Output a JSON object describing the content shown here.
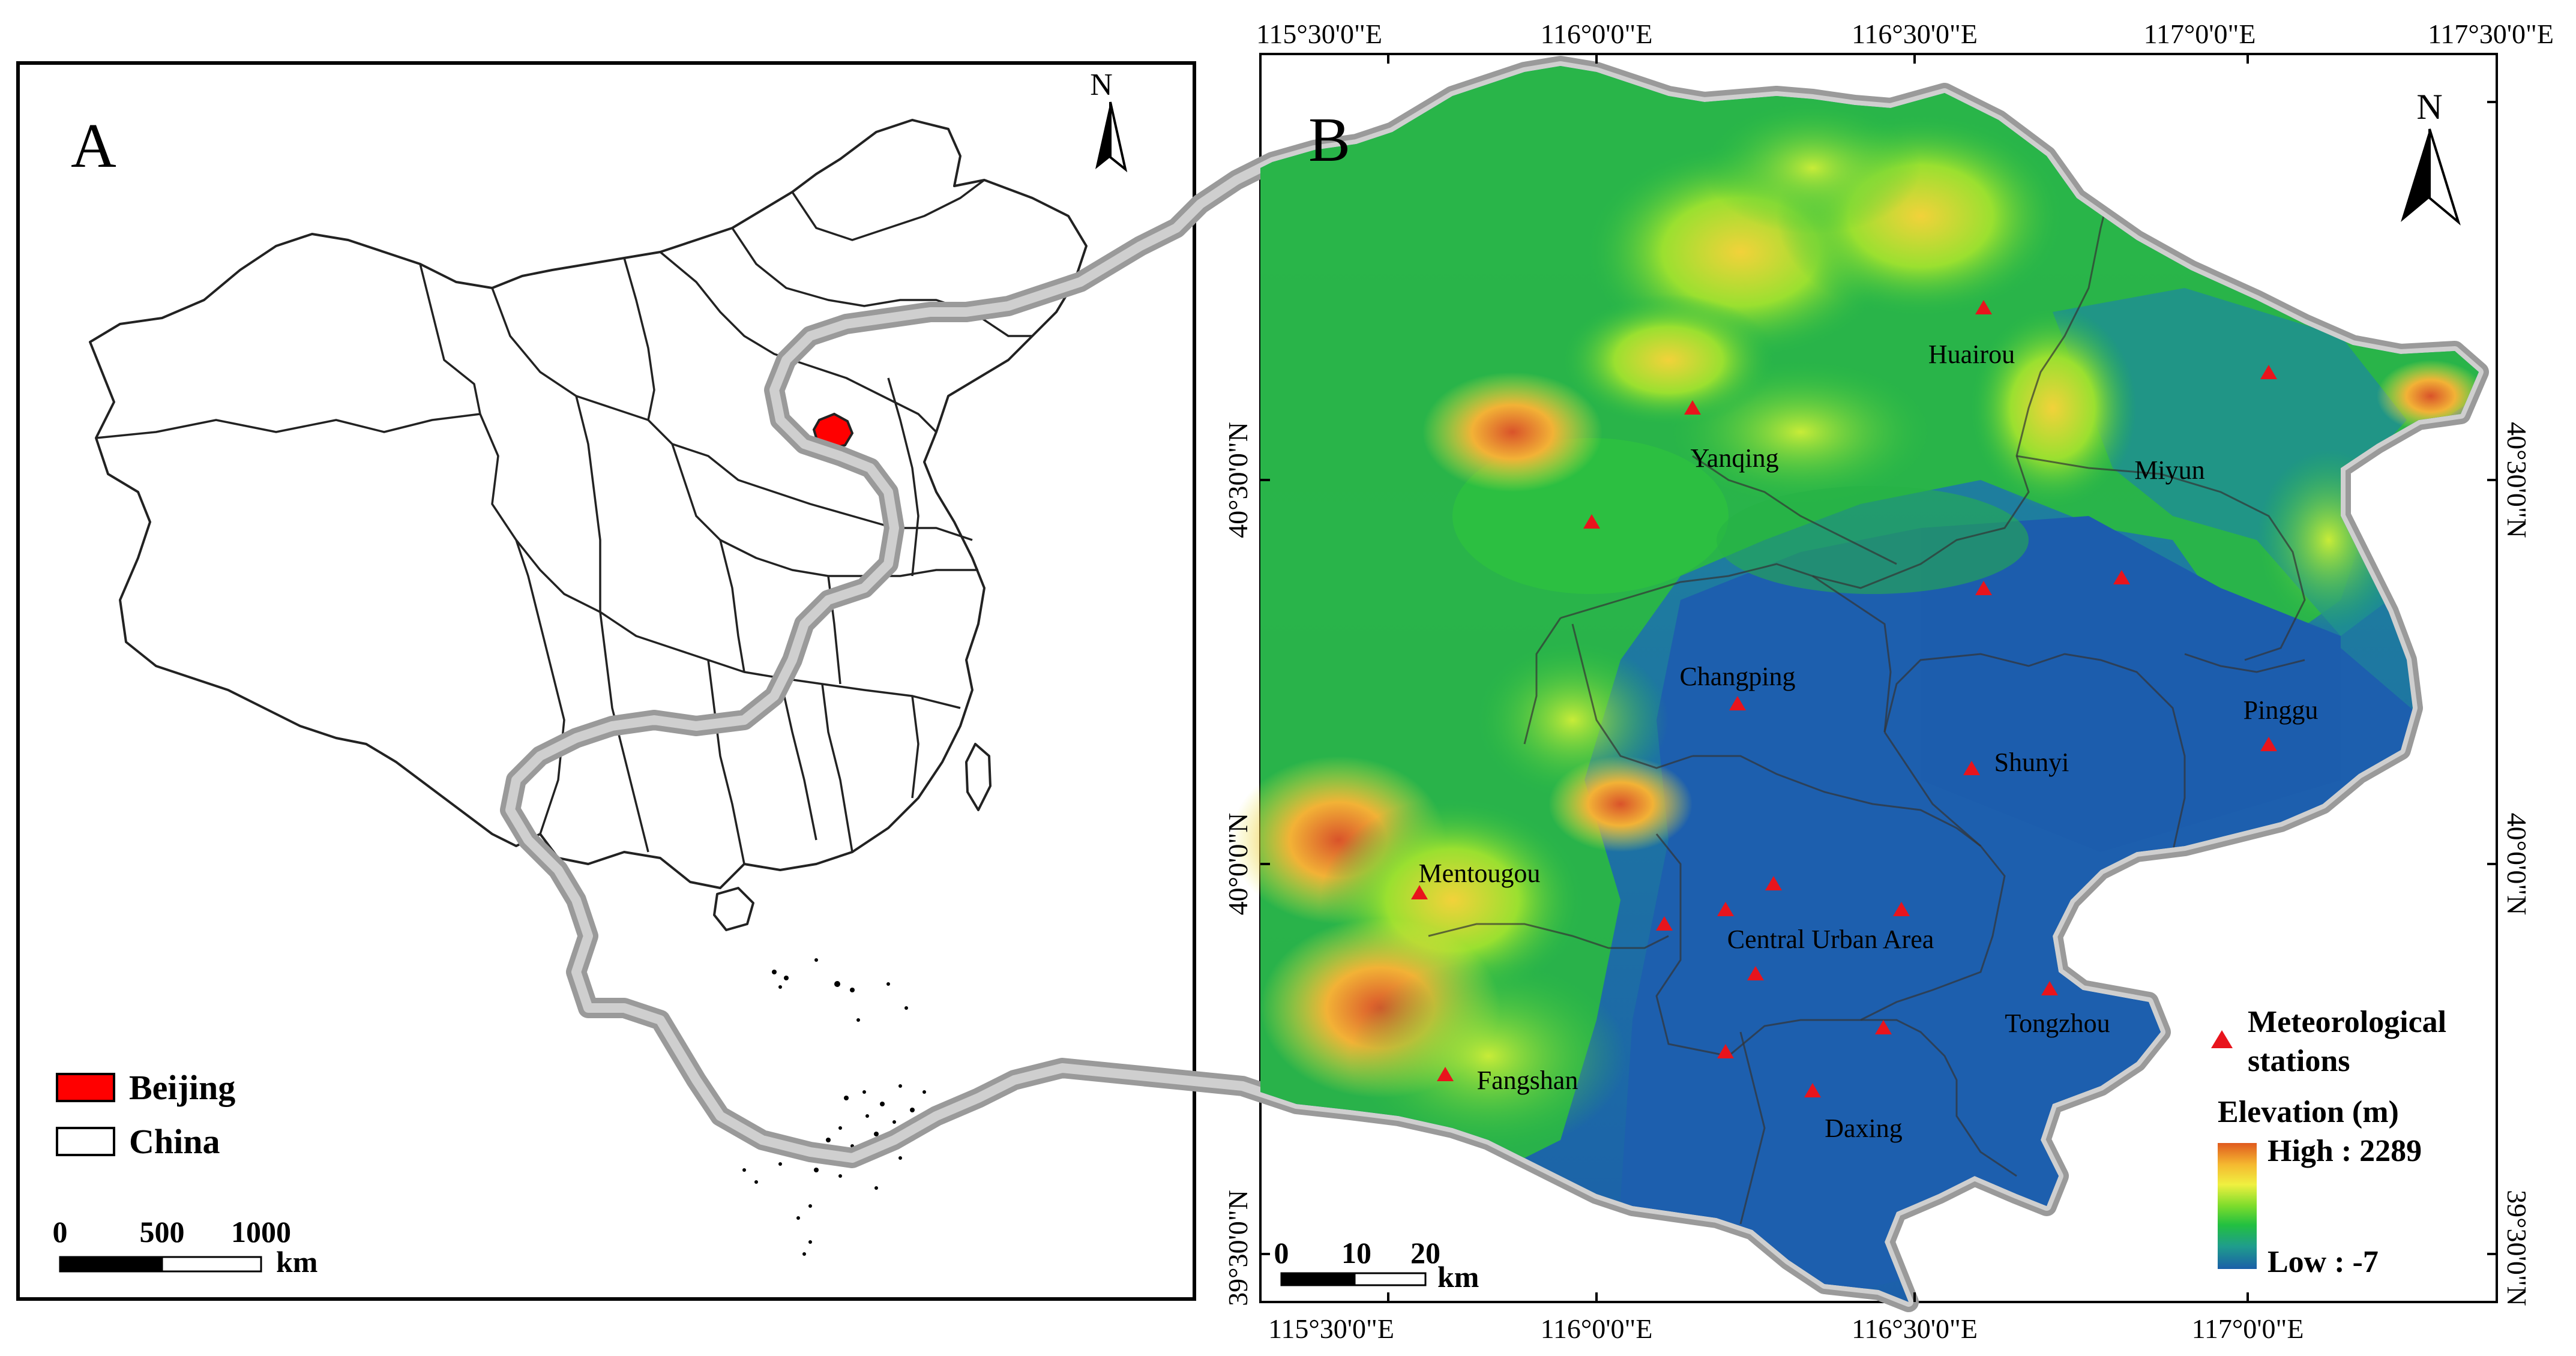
{
  "panel_a": {
    "label": "A",
    "north": "N",
    "legend": [
      {
        "label": "Beijing",
        "color": "#ff0000"
      },
      {
        "label": "China",
        "color": "#ffffff"
      }
    ],
    "scale": {
      "ticks": [
        "0",
        "500",
        "1000"
      ],
      "unit": "km"
    }
  },
  "panel_b": {
    "label": "B",
    "north": "N",
    "top_ticks": [
      "115°30'0\"E",
      "116°0'0\"E",
      "116°30'0\"E",
      "117°0'0\"E",
      "117°30'0\"E"
    ],
    "bottom_ticks": [
      "115°30'0\"E",
      "116°0'0\"E",
      "116°30'0\"E",
      "117°0'0\"E"
    ],
    "left_ticks": [
      "40°30'0\"N",
      "40°0'0\"N",
      "39°30'0\"N"
    ],
    "right_ticks": [
      "40°30'0\"N",
      "40°0'0\"N",
      "39°30'0\"N"
    ],
    "districts": {
      "huairou": "Huairou",
      "yanqing": "Yanqing",
      "miyun": "Miyun",
      "changping": "Changping",
      "pinggu": "Pinggu",
      "shunyi": "Shunyi",
      "mentougou": "Mentougou",
      "central": "Central Urban Area",
      "tongzhou": "Tongzhou",
      "fangshan": "Fangshan",
      "daxing": "Daxing"
    },
    "station_count": 20,
    "legend": {
      "stations_line1": "Meteorological",
      "stations_line2": "stations",
      "elevation_title": "Elevation (m)",
      "high": "High : 2289",
      "low": "Low : -7",
      "colors": [
        "#e05a1e",
        "#f5b830",
        "#f0f040",
        "#7cdc2c",
        "#22c040",
        "#1f9d8c",
        "#1a5fa8"
      ]
    },
    "scale": {
      "ticks": [
        "0",
        "10",
        "20"
      ],
      "unit": "km"
    }
  }
}
